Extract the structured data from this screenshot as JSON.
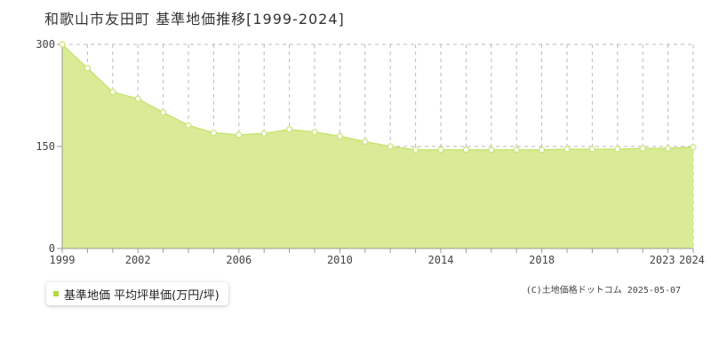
{
  "title": "和歌山市友田町 基準地価推移[1999-2024]",
  "legend": {
    "label": "基準地価 平均坪単価(万円/坪)"
  },
  "copyright": "(C)土地価格ドットコム 2025-05-07",
  "colors": {
    "line": "#c9e472",
    "fill": "#d9eb97",
    "marker": "#ffffff",
    "legend_marker": "#b5d643",
    "grid": "#bbbbbb",
    "axis": "#999999"
  },
  "chart_data": {
    "type": "area",
    "x": [
      1999,
      2000,
      2001,
      2002,
      2003,
      2004,
      2005,
      2006,
      2007,
      2008,
      2009,
      2010,
      2011,
      2012,
      2013,
      2014,
      2015,
      2016,
      2017,
      2018,
      2019,
      2020,
      2021,
      2022,
      2023,
      2024
    ],
    "series": [
      {
        "name": "基準地価 平均坪単価(万円/坪)",
        "values": [
          300,
          265,
          230,
          220,
          200,
          181,
          170,
          167,
          169,
          175,
          171,
          165,
          157,
          150,
          145,
          145,
          145,
          145,
          145,
          145,
          146,
          146,
          146,
          147,
          147,
          149
        ]
      }
    ],
    "ylim": [
      0,
      300
    ],
    "yticks": [
      0,
      150,
      300
    ],
    "xtick_labels": [
      1999,
      2002,
      2006,
      2010,
      2014,
      2018,
      2023,
      2024
    ],
    "xlabel": "",
    "ylabel": "",
    "grid": true,
    "legend_position": "bottom-left"
  }
}
